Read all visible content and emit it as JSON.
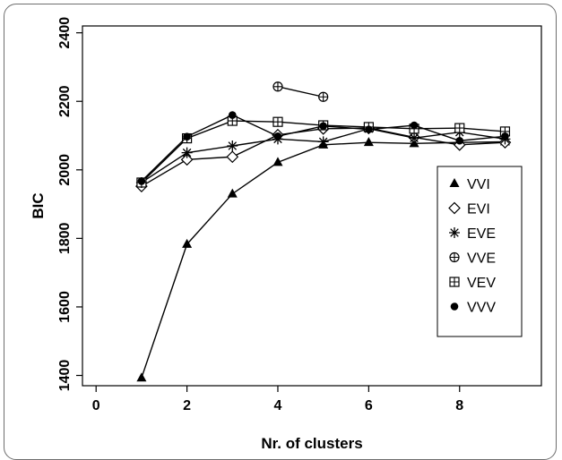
{
  "chart_data": {
    "type": "line",
    "title": "",
    "xlabel": "Nr. of clusters",
    "ylabel": "BIC",
    "xlim": [
      -0.3,
      9.8
    ],
    "ylim": [
      1370,
      2420
    ],
    "x_ticks": [
      "0",
      "2",
      "4",
      "6",
      "8"
    ],
    "x_tick_values": [
      0,
      2,
      4,
      6,
      8
    ],
    "y_ticks": [
      "1400",
      "1600",
      "1800",
      "2000",
      "2200",
      "2400"
    ],
    "y_tick_values": [
      1400,
      1600,
      1800,
      2000,
      2200,
      2400
    ],
    "grid": false,
    "legend_position": "right",
    "series": [
      {
        "name": "VVI",
        "marker": "triangle",
        "x": [
          1,
          2,
          3,
          4,
          5,
          6,
          7,
          8,
          9
        ],
        "values": [
          1393,
          1783,
          1930,
          2022,
          2073,
          2080,
          2077,
          2080,
          2082
        ]
      },
      {
        "name": "EVI",
        "marker": "diamond",
        "x": [
          1,
          2,
          3,
          4,
          5,
          6,
          7,
          8,
          9
        ],
        "values": [
          1952,
          2030,
          2038,
          2102,
          2120,
          2122,
          2095,
          2073,
          2080
        ]
      },
      {
        "name": "EVE",
        "marker": "star",
        "x": [
          1,
          2,
          3,
          4,
          5,
          6,
          7,
          8,
          9
        ],
        "values": [
          1963,
          2050,
          2070,
          2090,
          2082,
          2120,
          2093,
          2110,
          2090
        ]
      },
      {
        "name": "VVE",
        "marker": "circle-plus",
        "x": [
          4,
          5
        ],
        "values": [
          2243,
          2213
        ]
      },
      {
        "name": "VEV",
        "marker": "square-plus",
        "x": [
          1,
          2,
          3,
          4,
          5,
          6,
          7,
          8,
          9
        ],
        "values": [
          1963,
          2092,
          2143,
          2140,
          2130,
          2125,
          2120,
          2122,
          2112
        ]
      },
      {
        "name": "VVV",
        "marker": "dot",
        "x": [
          1,
          2,
          3,
          4,
          5,
          6,
          7,
          8,
          9
        ],
        "values": [
          1967,
          2097,
          2160,
          2098,
          2128,
          2118,
          2130,
          2085,
          2098
        ]
      }
    ]
  }
}
